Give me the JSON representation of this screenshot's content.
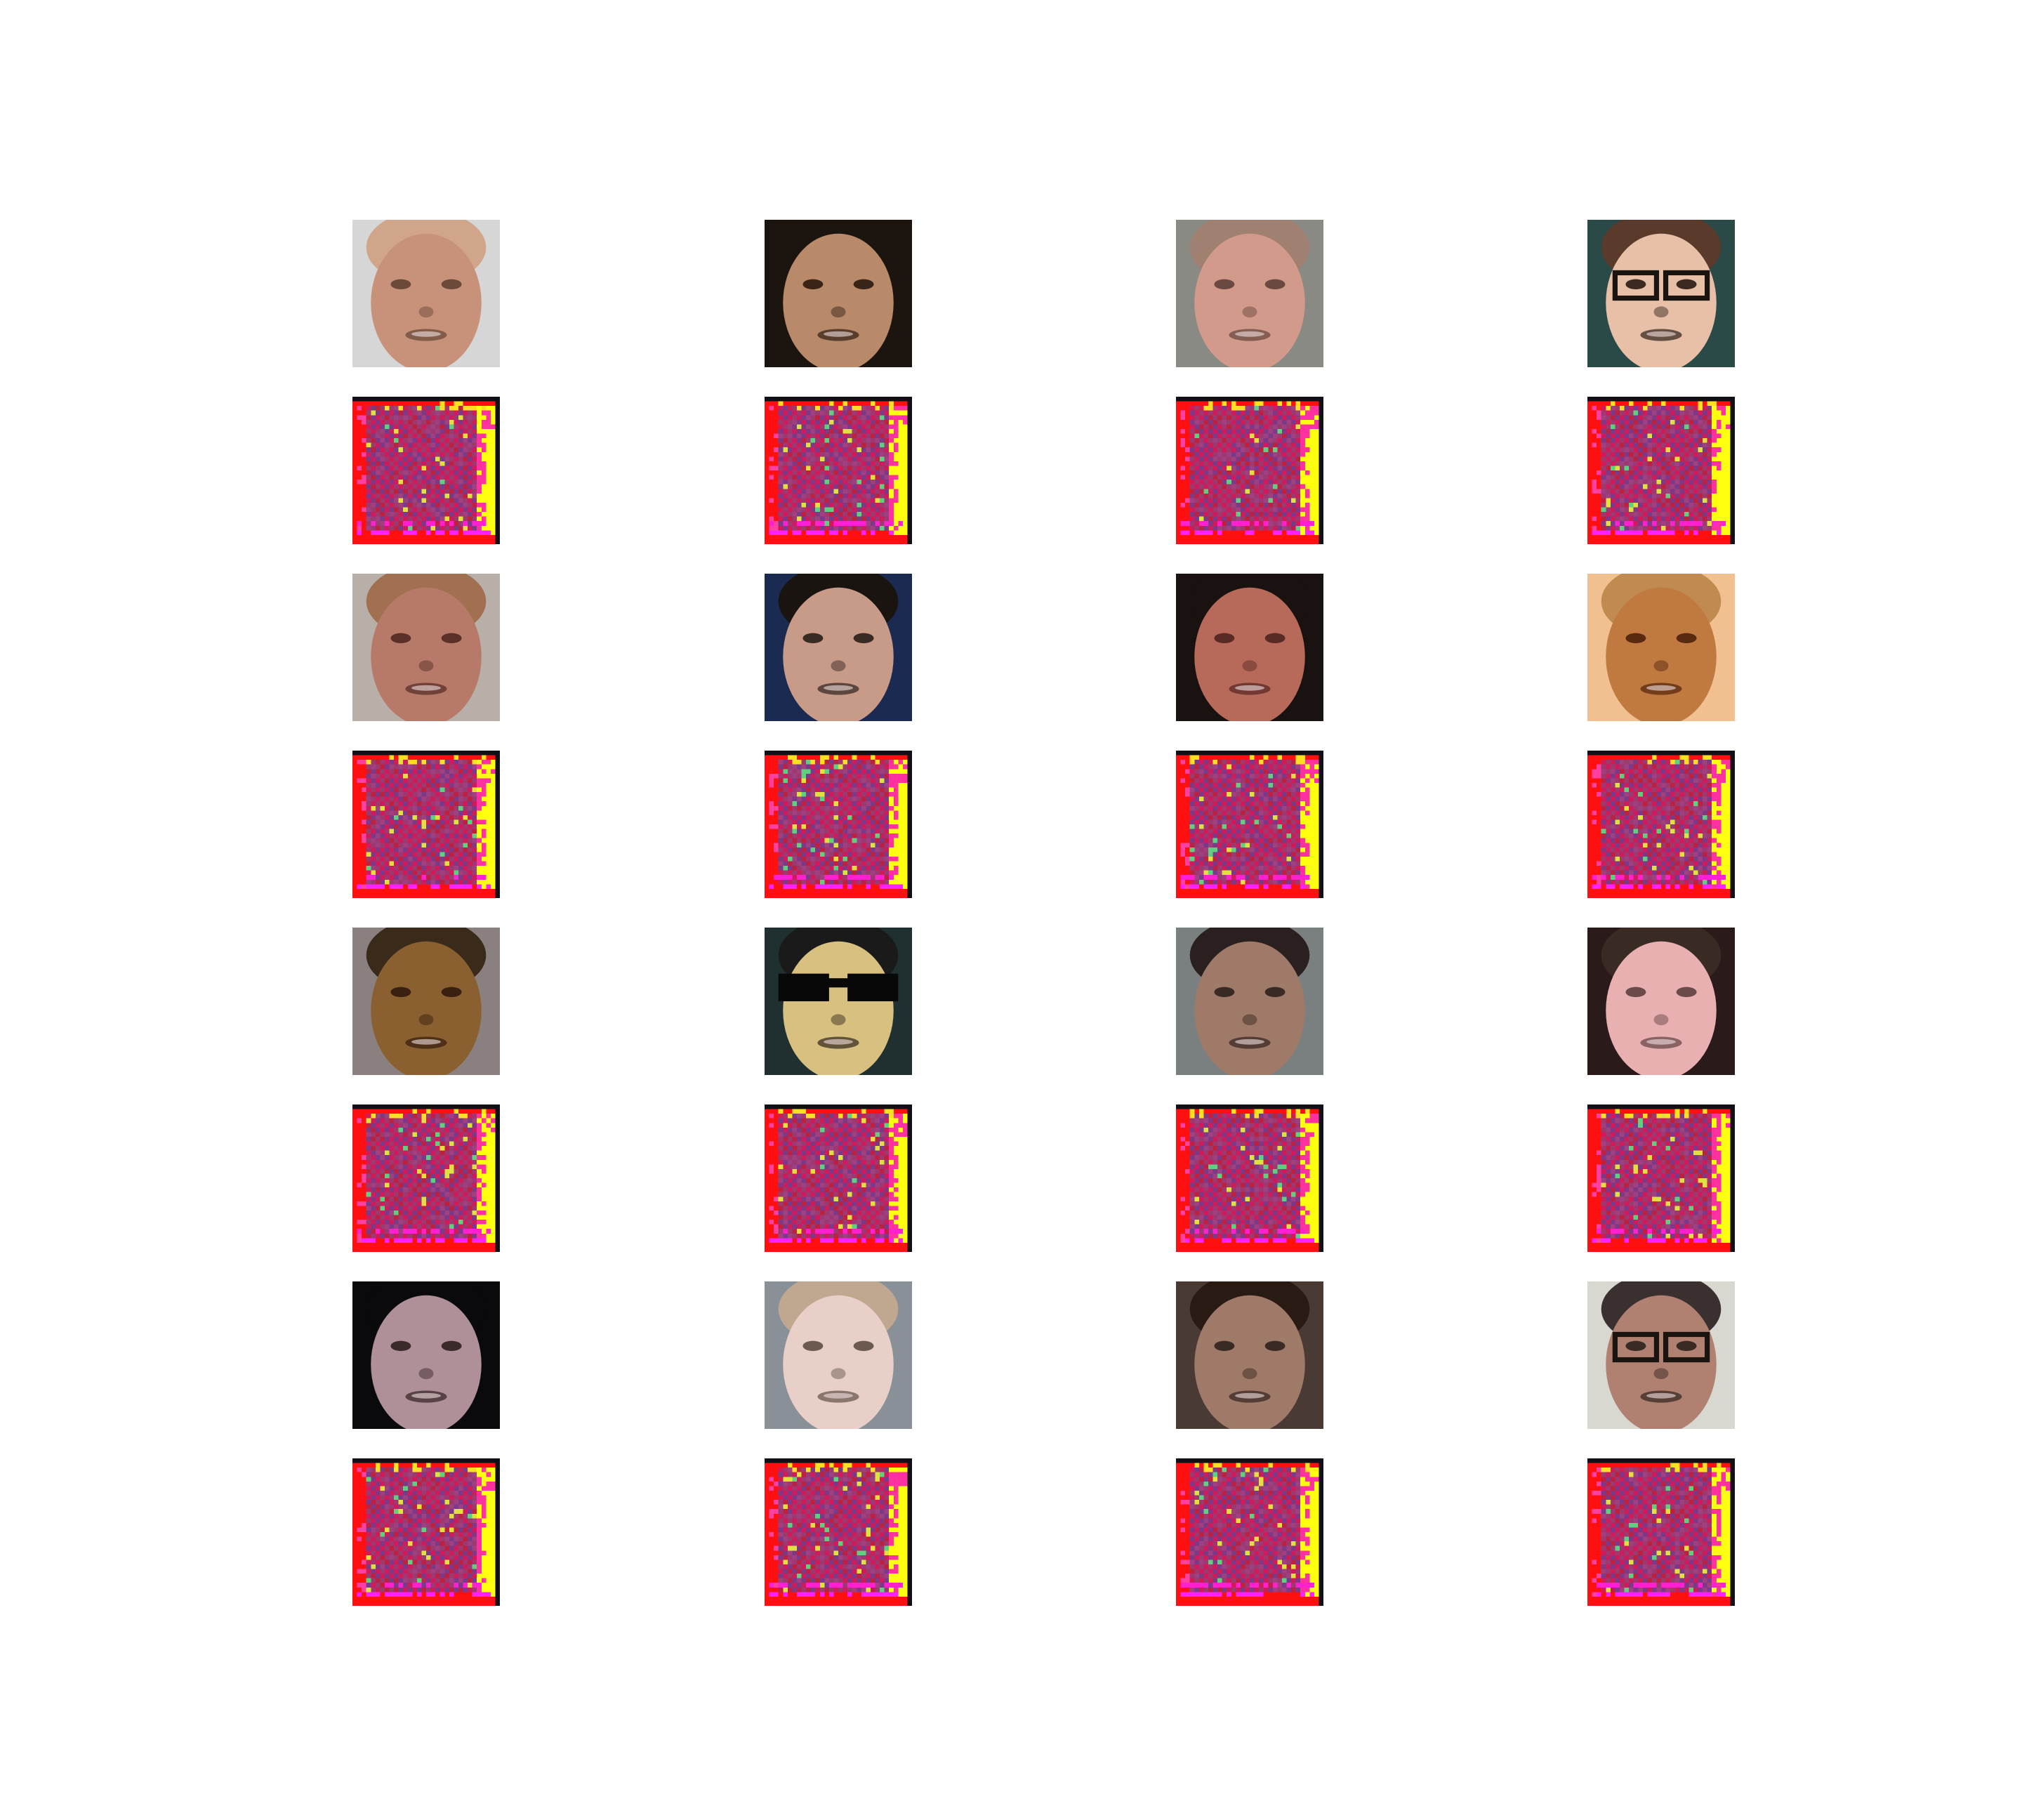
{
  "figure": {
    "rows": 8,
    "cols": 4,
    "pairs": [
      {
        "face": {
          "skin": "#c8927a",
          "bg": "#d6d6d6",
          "hair": "#d0a58a",
          "dark": "#6b4a3a",
          "glasses": false,
          "shades": false
        },
        "noise": {
          "bg": "#ff1010",
          "mid": "#8a3a70",
          "edge": "#ffff10",
          "seed": 1
        }
      },
      {
        "face": {
          "skin": "#b88a6a",
          "bg": "#1c140e",
          "hair": "#1c140e",
          "dark": "#3a2418",
          "glasses": false,
          "shades": false
        },
        "noise": {
          "bg": "#ff1010",
          "mid": "#8a3a70",
          "edge": "#ffff10",
          "seed": 2
        }
      },
      {
        "face": {
          "skin": "#d29a8a",
          "bg": "#8a8a84",
          "hair": "#a08070",
          "dark": "#6a4a40",
          "glasses": false,
          "shades": false
        },
        "noise": {
          "bg": "#ff1010",
          "mid": "#8a3a70",
          "edge": "#ffff10",
          "seed": 3
        }
      },
      {
        "face": {
          "skin": "#e8c0a8",
          "bg": "#2a4a48",
          "hair": "#5a3a2a",
          "dark": "#3a2a22",
          "glasses": true,
          "shades": false
        },
        "noise": {
          "bg": "#ff1010",
          "mid": "#8a3a70",
          "edge": "#ffff10",
          "seed": 4
        }
      },
      {
        "face": {
          "skin": "#b87a68",
          "bg": "#b8b0a8",
          "hair": "#a07050",
          "dark": "#5a3028",
          "glasses": false,
          "shades": false
        },
        "noise": {
          "bg": "#ff1010",
          "mid": "#8a3a70",
          "edge": "#ffff10",
          "seed": 5
        }
      },
      {
        "face": {
          "skin": "#c89a88",
          "bg": "#1a2a50",
          "hair": "#1a1410",
          "dark": "#3a2a24",
          "glasses": false,
          "shades": false
        },
        "noise": {
          "bg": "#ff1010",
          "mid": "#8a3a70",
          "edge": "#ffff10",
          "seed": 6
        }
      },
      {
        "face": {
          "skin": "#b86a5a",
          "bg": "#1a1210",
          "hair": "#1a1210",
          "dark": "#5a2a24",
          "glasses": false,
          "shades": false
        },
        "noise": {
          "bg": "#ff1010",
          "mid": "#8a3a70",
          "edge": "#ffff10",
          "seed": 7
        }
      },
      {
        "face": {
          "skin": "#c07a40",
          "bg": "#f0c090",
          "hair": "#c08a50",
          "dark": "#5a2a10",
          "glasses": false,
          "shades": false
        },
        "noise": {
          "bg": "#ff1010",
          "mid": "#8a3a70",
          "edge": "#ffff10",
          "seed": 8
        }
      },
      {
        "face": {
          "skin": "#8a6030",
          "bg": "#8a8080",
          "hair": "#3a2a1a",
          "dark": "#3a2010",
          "glasses": false,
          "shades": false
        },
        "noise": {
          "bg": "#ff1010",
          "mid": "#8a3a70",
          "edge": "#ffff10",
          "seed": 9
        }
      },
      {
        "face": {
          "skin": "#d8c080",
          "bg": "#203030",
          "hair": "#1a1a1a",
          "dark": "#3a3020",
          "glasses": false,
          "shades": true
        },
        "noise": {
          "bg": "#ff1010",
          "mid": "#8a3a70",
          "edge": "#ffff10",
          "seed": 10
        }
      },
      {
        "face": {
          "skin": "#a07a68",
          "bg": "#7a8080",
          "hair": "#2a2020",
          "dark": "#3a2a24",
          "glasses": false,
          "shades": false
        },
        "noise": {
          "bg": "#ff1010",
          "mid": "#8a3a70",
          "edge": "#ffff10",
          "seed": 11
        }
      },
      {
        "face": {
          "skin": "#e8b0b0",
          "bg": "#2a1a1a",
          "hair": "#3a2a24",
          "dark": "#6a4a4a",
          "glasses": false,
          "shades": false
        },
        "noise": {
          "bg": "#ff1010",
          "mid": "#8a3a70",
          "edge": "#ffff10",
          "seed": 12
        }
      },
      {
        "face": {
          "skin": "#b09098",
          "bg": "#0a0a0c",
          "hair": "#0a0a0c",
          "dark": "#3a2a2a",
          "glasses": false,
          "shades": false
        },
        "noise": {
          "bg": "#ff1010",
          "mid": "#8a3a70",
          "edge": "#ffff10",
          "seed": 13
        }
      },
      {
        "face": {
          "skin": "#e8d0c8",
          "bg": "#8a9098",
          "hair": "#c0a890",
          "dark": "#6a5a50",
          "glasses": false,
          "shades": false
        },
        "noise": {
          "bg": "#ff1010",
          "mid": "#8a3a70",
          "edge": "#ffff10",
          "seed": 14
        }
      },
      {
        "face": {
          "skin": "#a07a68",
          "bg": "#4a3a34",
          "hair": "#2a1a14",
          "dark": "#3a2a24",
          "glasses": false,
          "shades": false
        },
        "noise": {
          "bg": "#ff1010",
          "mid": "#8a3a70",
          "edge": "#ffff10",
          "seed": 15
        }
      },
      {
        "face": {
          "skin": "#b08070",
          "bg": "#d8d8d0",
          "hair": "#3a3030",
          "dark": "#3a2a24",
          "glasses": true,
          "shades": false
        },
        "noise": {
          "bg": "#ff1010",
          "mid": "#8a3a70",
          "edge": "#ffff10",
          "seed": 16
        }
      }
    ]
  }
}
